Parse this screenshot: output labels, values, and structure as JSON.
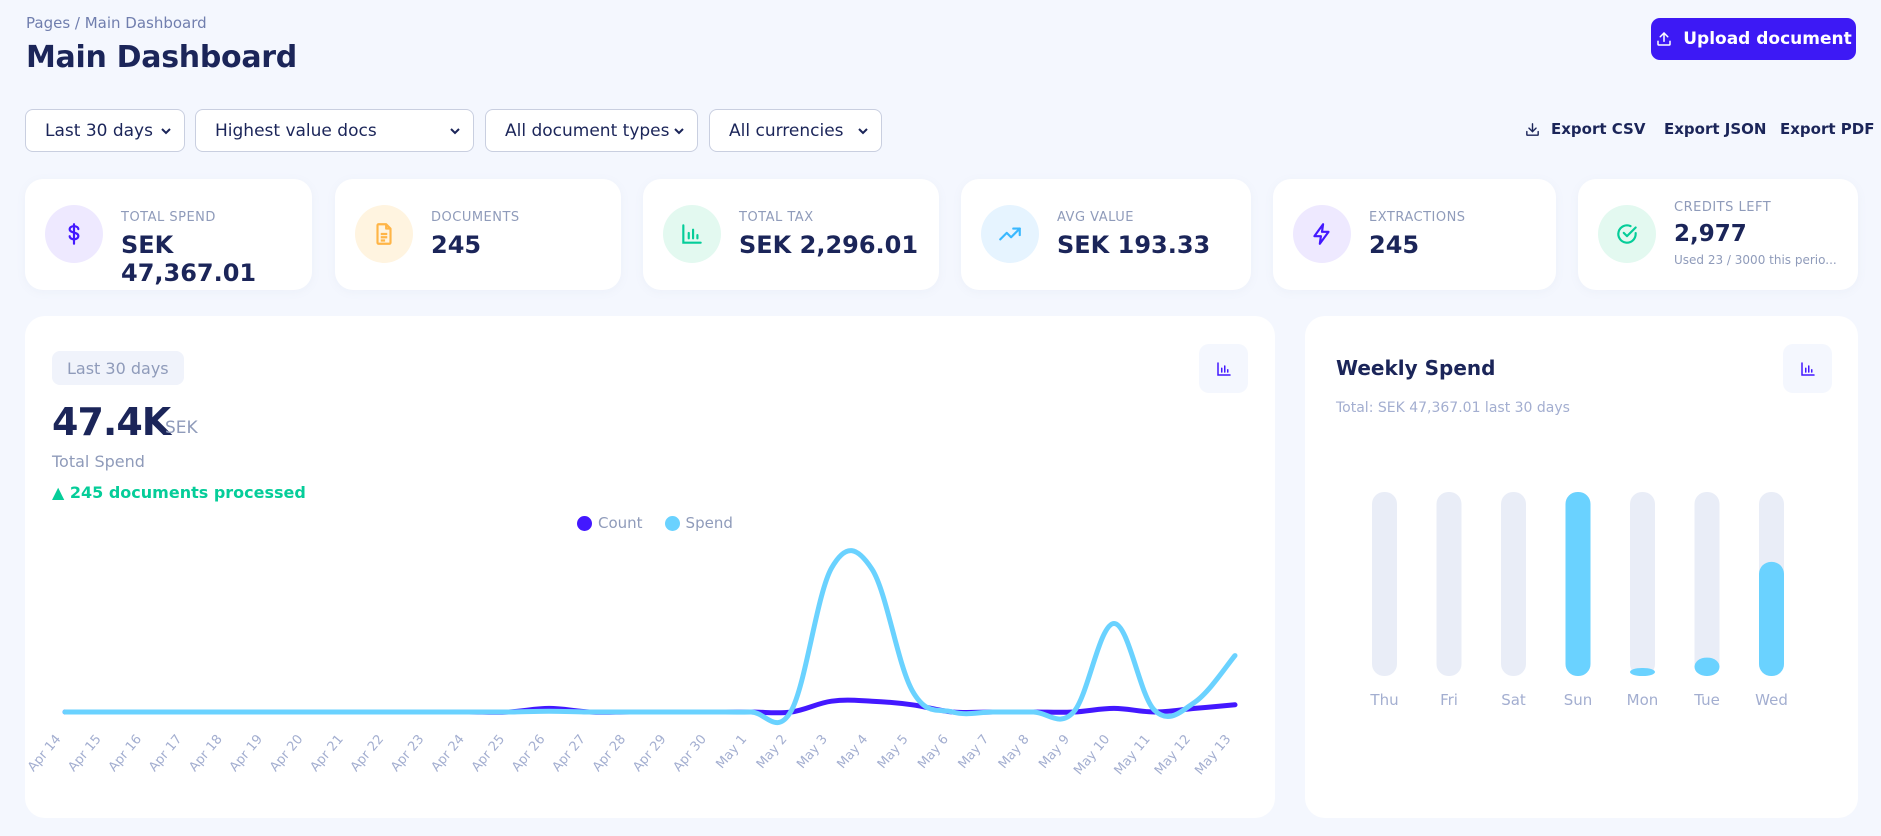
{
  "header": {
    "breadcrumb": "Pages / Main Dashboard",
    "title": "Main Dashboard",
    "upload_label": "Upload document"
  },
  "filters": [
    {
      "value": "Last 30 days"
    },
    {
      "value": "Highest value docs"
    },
    {
      "value": "All document types"
    },
    {
      "value": "All currencies"
    }
  ],
  "exports": {
    "csv": "Export CSV",
    "json": "Export JSON",
    "pdf": "Export PDF"
  },
  "stats": [
    {
      "label": "TOTAL SPEND",
      "value": "SEK 47,367.01",
      "icon": "dollar-icon",
      "color": "#4318ff",
      "bg": "#eee9ff"
    },
    {
      "label": "DOCUMENTS",
      "value": "245",
      "icon": "document-icon",
      "color": "#ffb547",
      "bg": "#fff4e0"
    },
    {
      "label": "TOTAL TAX",
      "value": "SEK 2,296.01",
      "icon": "bar-chart-icon",
      "color": "#05cd99",
      "bg": "#e3f9f0"
    },
    {
      "label": "AVG VALUE",
      "value": "SEK 193.33",
      "icon": "trending-up-icon",
      "color": "#39b8ff",
      "bg": "#e6f4ff"
    },
    {
      "label": "EXTRACTIONS",
      "value": "245",
      "icon": "lightning-icon",
      "color": "#4318ff",
      "bg": "#eee9ff"
    },
    {
      "label": "CREDITS LEFT",
      "value": "2,977",
      "sub": "Used 23 / 3000 this perio...",
      "icon": "check-circle-icon",
      "color": "#05cd99",
      "bg": "#e3f9f0"
    }
  ],
  "spend_panel": {
    "period": "Last 30 days",
    "big_value": "47.4K",
    "unit": "SEK",
    "label": "Total Spend",
    "trend": "▲ 245 documents processed"
  },
  "weekly_panel": {
    "title": "Weekly Spend",
    "subtitle": "Total: SEK 47,367.01 last 30 days"
  },
  "chart_data": [
    {
      "type": "line",
      "title": "",
      "legend_position": "top-center",
      "x": [
        "Apr 14",
        "Apr 15",
        "Apr 16",
        "Apr 17",
        "Apr 18",
        "Apr 19",
        "Apr 20",
        "Apr 21",
        "Apr 22",
        "Apr 23",
        "Apr 24",
        "Apr 25",
        "Apr 26",
        "Apr 27",
        "Apr 28",
        "Apr 29",
        "Apr 30",
        "May 1",
        "May 2",
        "May 3",
        "May 4",
        "May 5",
        "May 6",
        "May 7",
        "May 8",
        "May 9",
        "May 10",
        "May 11",
        "May 12",
        "May 13"
      ],
      "series": [
        {
          "name": "Count",
          "color": "#4318ff",
          "values": [
            0,
            0,
            0,
            0,
            0,
            0,
            0,
            0,
            0,
            0,
            0,
            0,
            1,
            0,
            0,
            0,
            0,
            0,
            0,
            3,
            3,
            2,
            0,
            0,
            0,
            0,
            1,
            0,
            1,
            2
          ]
        },
        {
          "name": "Spend",
          "color": "#6ad2ff",
          "values": [
            0,
            0,
            0,
            0,
            0,
            0,
            0,
            0,
            0,
            0,
            0,
            0,
            80,
            0,
            0,
            0,
            0,
            0,
            120,
            14800,
            14700,
            2200,
            0,
            0,
            0,
            0,
            9100,
            200,
            1000,
            5800
          ]
        }
      ],
      "grid": false
    },
    {
      "type": "bar",
      "title": "Weekly Spend",
      "categories": [
        "Thu",
        "Fri",
        "Sat",
        "Sun",
        "Mon",
        "Tue",
        "Wed"
      ],
      "values": [
        0,
        0,
        0,
        1.0,
        0.03,
        0.1,
        0.62
      ],
      "grid": false
    }
  ]
}
